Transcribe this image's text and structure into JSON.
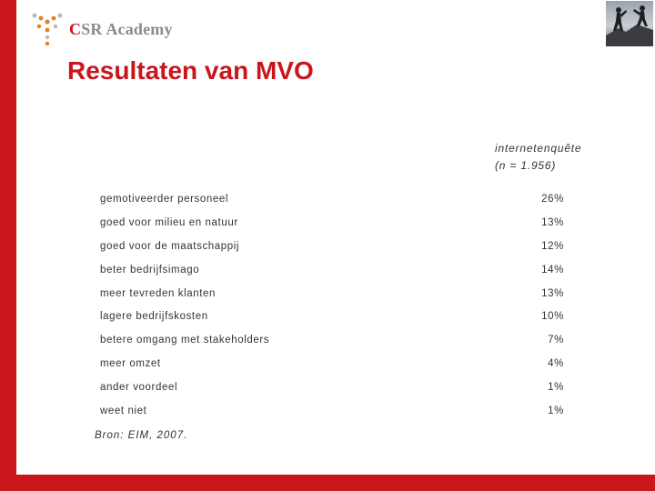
{
  "logo": {
    "text_c": "C",
    "text_rest": "SR Academy"
  },
  "title": "Resultaten van MVO",
  "table": {
    "header_line1": "internetenquête",
    "header_line2": "(n = 1.956)",
    "rows": [
      {
        "label": "gemotiveerder personeel",
        "value": "26%"
      },
      {
        "label": "goed voor milieu en natuur",
        "value": "13%"
      },
      {
        "label": "goed voor de maatschappij",
        "value": "12%"
      },
      {
        "label": "beter bedrijfsimago",
        "value": "14%"
      },
      {
        "label": "meer tevreden klanten",
        "value": "13%"
      },
      {
        "label": "lagere bedrijfskosten",
        "value": "10%"
      },
      {
        "label": "betere omgang met stakeholders",
        "value": "7%"
      },
      {
        "label": "meer omzet",
        "value": "4%"
      },
      {
        "label": "ander voordeel",
        "value": "1%"
      },
      {
        "label": "weet niet",
        "value": "1%"
      }
    ],
    "source": "Bron: EIM, 2007."
  }
}
